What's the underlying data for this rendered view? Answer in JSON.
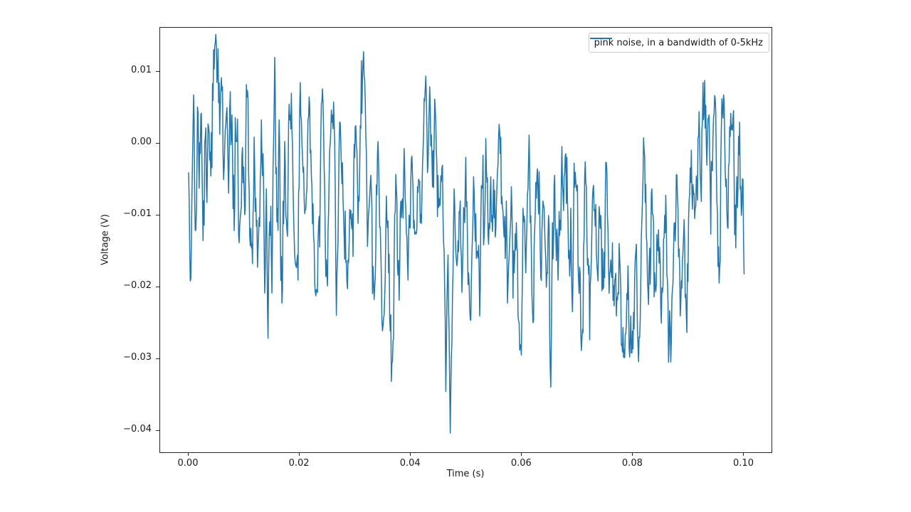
{
  "figure": {
    "background_color": "#ffffff"
  },
  "axes": {
    "xlabel": "Time (s)",
    "ylabel": "Voltage (V)",
    "x_ticks": [
      {
        "value": 0.0,
        "label": "0.00"
      },
      {
        "value": 0.02,
        "label": "0.02"
      },
      {
        "value": 0.04,
        "label": "0.04"
      },
      {
        "value": 0.06,
        "label": "0.06"
      },
      {
        "value": 0.08,
        "label": "0.08"
      },
      {
        "value": 0.1,
        "label": "0.10"
      }
    ],
    "y_ticks": [
      {
        "value": 0.01,
        "label": "0.01"
      },
      {
        "value": 0.0,
        "label": "0.00"
      },
      {
        "value": -0.01,
        "label": "−0.01"
      },
      {
        "value": -0.02,
        "label": "−0.02"
      },
      {
        "value": -0.03,
        "label": "−0.03"
      },
      {
        "value": -0.04,
        "label": "−0.04"
      }
    ],
    "spine_color": "#262626",
    "grid": false
  },
  "legend": {
    "label": "pink noise, in a bandwidth of 0-5kHz",
    "line_color": "#1f77b4",
    "position": "upper right"
  },
  "chart_data": {
    "type": "line",
    "title": "",
    "xlabel": "Time (s)",
    "ylabel": "Voltage (V)",
    "legend_entries": [
      "pink noise, in a bandwidth of 0-5kHz"
    ],
    "legend_position": "upper right",
    "grid": false,
    "xlim": [
      -0.0051,
      0.1049
    ],
    "ylim": [
      -0.043,
      0.0161
    ],
    "x_range": [
      0,
      0.1
    ],
    "y_extent": [
      -0.0403,
      0.014
    ],
    "series": [
      {
        "name": "pink noise, in a bandwidth of 0-5kHz",
        "color": "#1f77b4",
        "line_width": 1.5,
        "points_tv": [
          [
            0.0,
            -0.004
          ],
          [
            0.0004,
            -0.0188
          ],
          [
            0.0009,
            0.0068
          ],
          [
            0.0013,
            -0.012
          ],
          [
            0.0016,
            0.0051
          ],
          [
            0.0019,
            -0.0062
          ],
          [
            0.0022,
            0.004
          ],
          [
            0.0026,
            -0.0135
          ],
          [
            0.003,
            0.0008
          ],
          [
            0.0033,
            -0.0082
          ],
          [
            0.0037,
            0.0015
          ],
          [
            0.004,
            -0.0045
          ],
          [
            0.0044,
            0.006
          ],
          [
            0.0048,
            0.014
          ],
          [
            0.0051,
            0.0085
          ],
          [
            0.0053,
            0.0132
          ],
          [
            0.0056,
            0.0013
          ],
          [
            0.0059,
            0.0092
          ],
          [
            0.0063,
            -0.005
          ],
          [
            0.0066,
            0.002
          ],
          [
            0.0069,
            0.005
          ],
          [
            0.0072,
            -0.0069
          ],
          [
            0.0078,
            0.004
          ],
          [
            0.0082,
            -0.0121
          ],
          [
            0.0086,
            0.0003
          ],
          [
            0.0091,
            -0.0138
          ],
          [
            0.0096,
            -0.0017
          ],
          [
            0.0101,
            -0.0099
          ],
          [
            0.0104,
            0.0082
          ],
          [
            0.011,
            -0.0129
          ],
          [
            0.0113,
            -0.0145
          ],
          [
            0.0118,
            0.0009
          ],
          [
            0.0124,
            -0.0172
          ],
          [
            0.0131,
            0.0033
          ],
          [
            0.0137,
            -0.0208
          ],
          [
            0.014,
            -0.0063
          ],
          [
            0.0143,
            -0.0271
          ],
          [
            0.0146,
            -0.0109
          ],
          [
            0.015,
            -0.0208
          ],
          [
            0.0155,
            0.012
          ],
          [
            0.0159,
            -0.0109
          ],
          [
            0.0163,
            0.0033
          ],
          [
            0.0168,
            -0.0222
          ],
          [
            0.0173,
            0.0003
          ],
          [
            0.0178,
            -0.0129
          ],
          [
            0.0183,
            0.004
          ],
          [
            0.0189,
            -0.0099
          ],
          [
            0.0193,
            -0.017
          ],
          [
            0.0197,
            -0.019
          ],
          [
            0.0201,
            0.0085
          ],
          [
            0.0206,
            -0.004
          ],
          [
            0.0211,
            -0.0091
          ],
          [
            0.0217,
            0.0065
          ],
          [
            0.0222,
            -0.006
          ],
          [
            0.0226,
            -0.0138
          ],
          [
            0.0232,
            -0.0207
          ],
          [
            0.0238,
            0.001
          ],
          [
            0.0242,
            0.0055
          ],
          [
            0.0247,
            -0.0185
          ],
          [
            0.0253,
            -0.0047
          ],
          [
            0.0258,
            0.003
          ],
          [
            0.0261,
            0.0058
          ],
          [
            0.0266,
            -0.0239
          ],
          [
            0.027,
            -0.006
          ],
          [
            0.0274,
            0.0001
          ],
          [
            0.028,
            -0.013
          ],
          [
            0.0286,
            -0.0202
          ],
          [
            0.0292,
            -0.0093
          ],
          [
            0.0296,
            -0.0157
          ],
          [
            0.03,
            0.0024
          ],
          [
            0.0305,
            -0.0111
          ],
          [
            0.0309,
            0.0025
          ],
          [
            0.0315,
            0.0128
          ],
          [
            0.0318,
            0.006
          ],
          [
            0.0322,
            -0.0143
          ],
          [
            0.0328,
            -0.0044
          ],
          [
            0.0334,
            -0.0217
          ],
          [
            0.0341,
            0.0003
          ],
          [
            0.0346,
            -0.015
          ],
          [
            0.035,
            -0.0254
          ],
          [
            0.0356,
            -0.0073
          ],
          [
            0.036,
            -0.018
          ],
          [
            0.0363,
            -0.0261
          ],
          [
            0.0366,
            -0.0305
          ],
          [
            0.0373,
            -0.0043
          ],
          [
            0.0379,
            -0.0218
          ],
          [
            0.0384,
            -0.008
          ],
          [
            0.0388,
            -0.0007
          ],
          [
            0.0395,
            -0.019
          ],
          [
            0.0401,
            -0.0022
          ],
          [
            0.0407,
            -0.0126
          ],
          [
            0.0412,
            -0.006
          ],
          [
            0.0417,
            -0.011
          ],
          [
            0.0422,
            -0.001
          ],
          [
            0.0427,
            0.0094
          ],
          [
            0.0431,
            -0.003
          ],
          [
            0.0435,
            0.0052
          ],
          [
            0.0439,
            -0.006
          ],
          [
            0.0443,
            0.0062
          ],
          [
            0.0447,
            -0.003
          ],
          [
            0.045,
            -0.0089
          ],
          [
            0.0454,
            -0.0045
          ],
          [
            0.0457,
            -0.003
          ],
          [
            0.046,
            -0.015
          ],
          [
            0.0463,
            -0.0345
          ],
          [
            0.0467,
            -0.0155
          ],
          [
            0.0471,
            -0.0403
          ],
          [
            0.0478,
            -0.0063
          ],
          [
            0.0483,
            -0.017
          ],
          [
            0.0489,
            -0.008
          ],
          [
            0.0492,
            -0.0207
          ],
          [
            0.0497,
            -0.011
          ],
          [
            0.05,
            -0.0088
          ],
          [
            0.0504,
            -0.018
          ],
          [
            0.0507,
            -0.0244
          ],
          [
            0.0511,
            -0.013
          ],
          [
            0.0514,
            -0.0068
          ],
          [
            0.052,
            -0.015
          ],
          [
            0.0524,
            -0.024
          ],
          [
            0.0529,
            -0.006
          ],
          [
            0.0532,
            -0.013
          ],
          [
            0.0535,
            0.0007
          ],
          [
            0.054,
            -0.014
          ],
          [
            0.0543,
            -0.007
          ],
          [
            0.0546,
            -0.01
          ],
          [
            0.0549,
            -0.005
          ],
          [
            0.0552,
            -0.013
          ],
          [
            0.0557,
            -0.0029
          ],
          [
            0.0561,
            -0.0014
          ],
          [
            0.0565,
            -0.009
          ],
          [
            0.0568,
            -0.013
          ],
          [
            0.0572,
            -0.008
          ],
          [
            0.0575,
            -0.0197
          ],
          [
            0.0581,
            -0.006
          ],
          [
            0.0586,
            -0.018
          ],
          [
            0.059,
            -0.011
          ],
          [
            0.0593,
            -0.024
          ],
          [
            0.0597,
            -0.028
          ],
          [
            0.0602,
            -0.009
          ],
          [
            0.0607,
            -0.018
          ],
          [
            0.0612,
            -0.0023
          ],
          [
            0.0615,
            -0.011
          ],
          [
            0.0618,
            -0.021
          ],
          [
            0.0623,
            -0.012
          ],
          [
            0.0627,
            -0.0046
          ],
          [
            0.0633,
            -0.015
          ],
          [
            0.0638,
            -0.008
          ],
          [
            0.0644,
            -0.02
          ],
          [
            0.0648,
            -0.01
          ],
          [
            0.0652,
            -0.0339
          ],
          [
            0.0655,
            -0.011
          ],
          [
            0.0659,
            -0.0044
          ],
          [
            0.0665,
            -0.019
          ],
          [
            0.067,
            -0.012
          ],
          [
            0.0674,
            -0.007
          ],
          [
            0.0679,
            -0.0014
          ],
          [
            0.0684,
            -0.016
          ],
          [
            0.0688,
            -0.009
          ],
          [
            0.0691,
            -0.0234
          ],
          [
            0.0696,
            -0.004
          ],
          [
            0.0702,
            -0.019
          ],
          [
            0.0708,
            -0.0273
          ],
          [
            0.0712,
            -0.013
          ],
          [
            0.0715,
            -0.0055
          ],
          [
            0.0719,
            -0.016
          ],
          [
            0.0722,
            -0.0273
          ],
          [
            0.0726,
            -0.012
          ],
          [
            0.0729,
            -0.0058
          ],
          [
            0.0736,
            -0.018
          ],
          [
            0.0742,
            -0.01
          ],
          [
            0.0747,
            -0.02
          ],
          [
            0.0751,
            -0.0026
          ],
          [
            0.0755,
            -0.012
          ],
          [
            0.0758,
            -0.018
          ],
          [
            0.0763,
            -0.0138
          ],
          [
            0.0767,
            -0.019
          ],
          [
            0.077,
            -0.024
          ],
          [
            0.0776,
            -0.016
          ],
          [
            0.0781,
            -0.029
          ],
          [
            0.0785,
            -0.0298
          ],
          [
            0.0791,
            -0.017
          ],
          [
            0.0796,
            -0.024
          ],
          [
            0.08,
            -0.0286
          ],
          [
            0.0806,
            -0.014
          ],
          [
            0.0812,
            -0.027
          ],
          [
            0.0815,
            -0.013
          ],
          [
            0.0819,
            0.0008
          ],
          [
            0.0824,
            -0.013
          ],
          [
            0.0828,
            -0.0224
          ],
          [
            0.0834,
            -0.0063
          ],
          [
            0.084,
            -0.02
          ],
          [
            0.0846,
            -0.012
          ],
          [
            0.0851,
            -0.025
          ],
          [
            0.0857,
            -0.01
          ],
          [
            0.0862,
            -0.019
          ],
          [
            0.0868,
            -0.0304
          ],
          [
            0.0873,
            -0.015
          ],
          [
            0.0879,
            -0.0044
          ],
          [
            0.0885,
            -0.024
          ],
          [
            0.0891,
            -0.013
          ],
          [
            0.0896,
            -0.0239
          ],
          [
            0.0901,
            -0.008
          ],
          [
            0.0905,
            -0.0009
          ],
          [
            0.0909,
            -0.007
          ],
          [
            0.0912,
            -0.009
          ],
          [
            0.0918,
            0.001
          ],
          [
            0.0922,
            -0.006
          ],
          [
            0.0925,
            0.003
          ],
          [
            0.0929,
            0.0088
          ],
          [
            0.0933,
            -0.003
          ],
          [
            0.0937,
            0.004
          ],
          [
            0.094,
            -0.0126
          ],
          [
            0.0944,
            0.001
          ],
          [
            0.0947,
            0.0067
          ],
          [
            0.0951,
            -0.008
          ],
          [
            0.0955,
            -0.0194
          ],
          [
            0.0959,
            0.002
          ],
          [
            0.0963,
            0.0068
          ],
          [
            0.0967,
            -0.006
          ],
          [
            0.0971,
            -0.0118
          ],
          [
            0.0975,
            0.001
          ],
          [
            0.0981,
            0.0046
          ],
          [
            0.0985,
            -0.0145
          ],
          [
            0.099,
            0.001
          ],
          [
            0.0995,
            -0.01
          ],
          [
            0.0998,
            -0.005
          ],
          [
            0.1,
            -0.0182
          ]
        ]
      }
    ],
    "render": {
      "n": 1001,
      "dt": 0.0001,
      "seed": 123456789,
      "noise_amp": 0.0038,
      "noise_rho": 0.5,
      "noise_clip": 0.0095,
      "clip": [
        -0.0418,
        0.0152
      ]
    }
  }
}
